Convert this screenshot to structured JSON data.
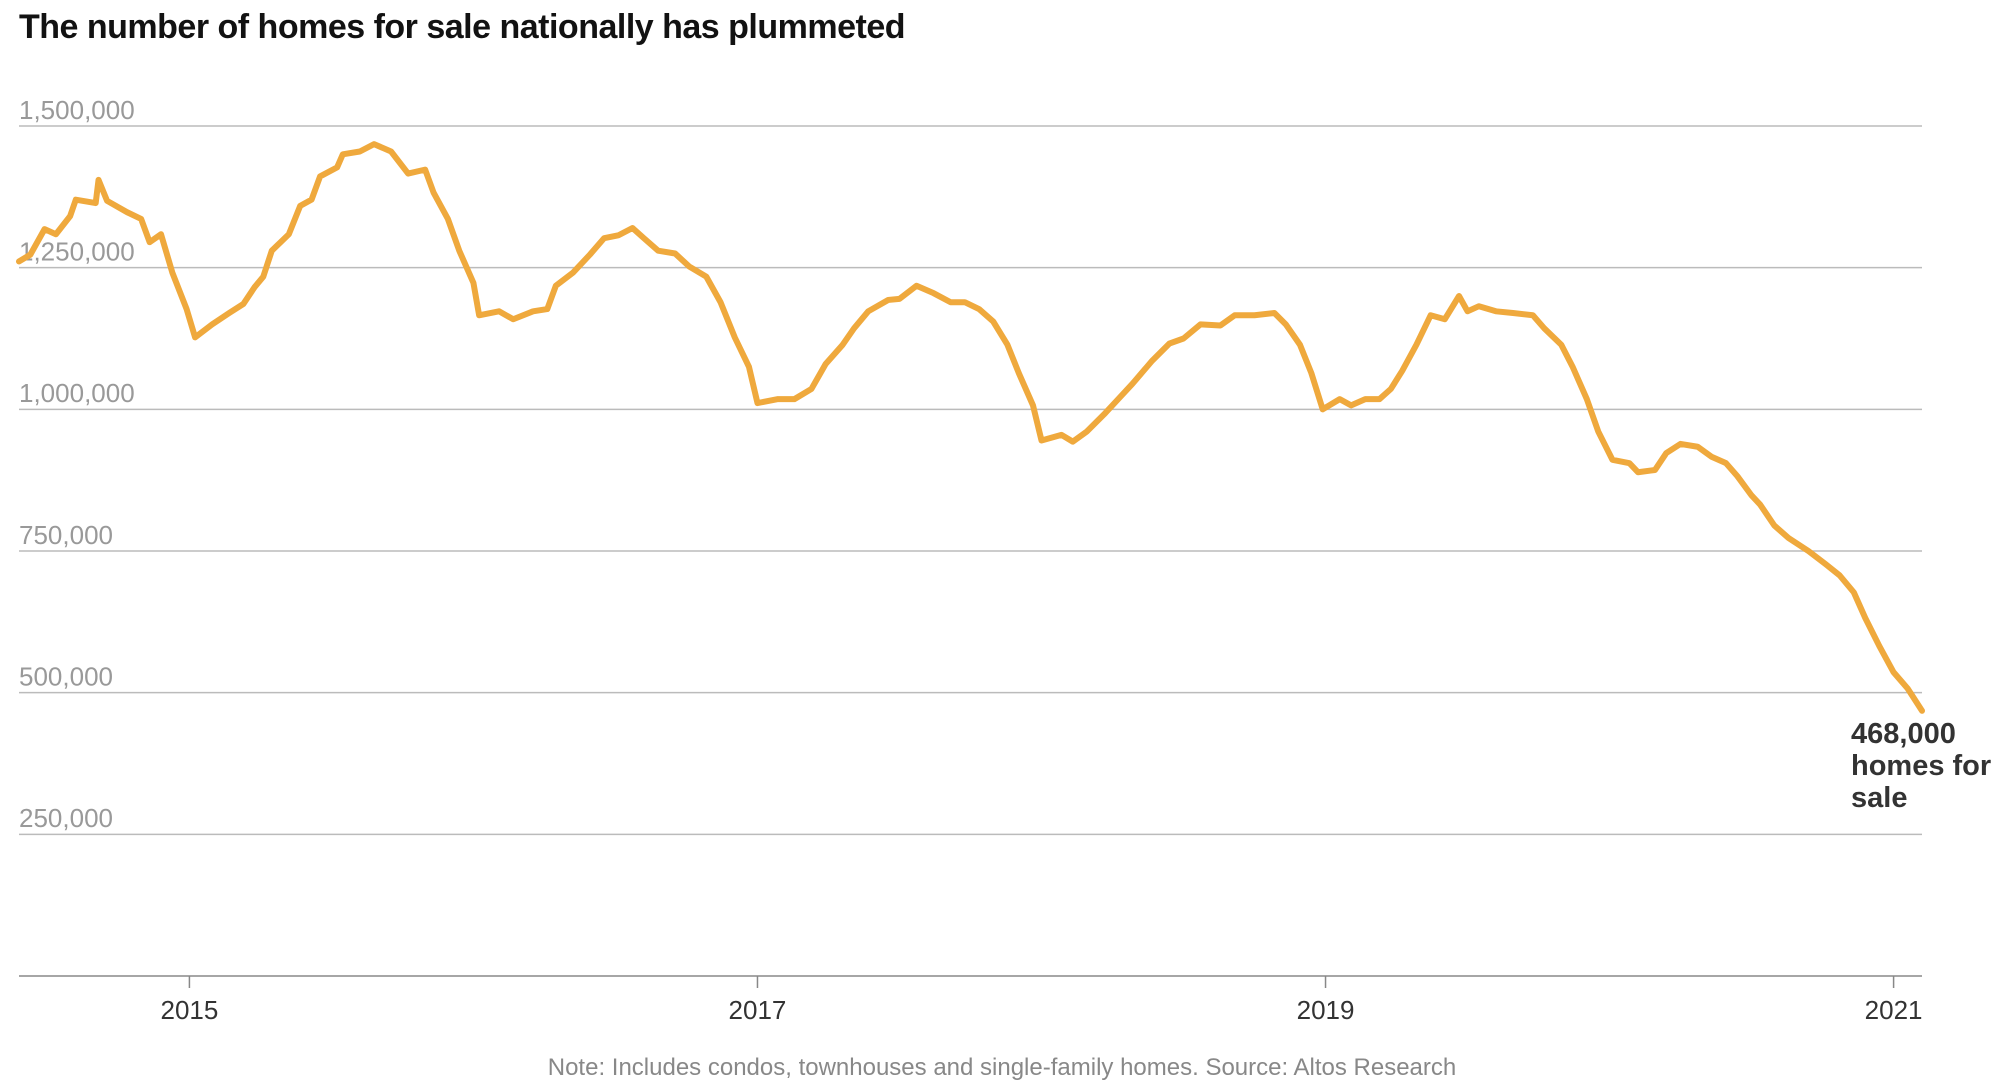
{
  "chart_data": {
    "type": "line",
    "title": "The number of homes for sale nationally has plummeted",
    "note": "Note: Includes condos, townhouses and single-family homes. Source: Altos Research",
    "annotation": "468,000 homes for sale",
    "color": "#efa93d",
    "x": [
      2014.4,
      2014.44,
      2014.49,
      2014.53,
      2014.58,
      2014.6,
      2014.67,
      2014.68,
      2014.71,
      2014.78,
      2014.83,
      2014.86,
      2014.9,
      2014.94,
      2014.99,
      2015.02,
      2015.08,
      2015.14,
      2015.19,
      2015.23,
      2015.26,
      2015.29,
      2015.35,
      2015.39,
      2015.43,
      2015.46,
      2015.52,
      2015.54,
      2015.6,
      2015.65,
      2015.71,
      2015.77,
      2015.83,
      2015.86,
      2015.91,
      2015.95,
      2016.0,
      2016.02,
      2016.09,
      2016.14,
      2016.21,
      2016.26,
      2016.29,
      2016.35,
      2016.41,
      2016.46,
      2016.51,
      2016.56,
      2016.6,
      2016.65,
      2016.71,
      2016.76,
      2016.82,
      2016.87,
      2016.92,
      2016.97,
      2017.0,
      2017.07,
      2017.13,
      2017.19,
      2017.24,
      2017.3,
      2017.34,
      2017.39,
      2017.46,
      2017.5,
      2017.56,
      2017.62,
      2017.68,
      2017.73,
      2017.78,
      2017.83,
      2017.88,
      2017.92,
      2017.97,
      2018.0,
      2018.07,
      2018.11,
      2018.16,
      2018.22,
      2018.27,
      2018.32,
      2018.39,
      2018.45,
      2018.5,
      2018.56,
      2018.63,
      2018.68,
      2018.75,
      2018.82,
      2018.86,
      2018.91,
      2018.95,
      2018.99,
      2019.05,
      2019.09,
      2019.14,
      2019.19,
      2019.23,
      2019.27,
      2019.32,
      2019.37,
      2019.42,
      2019.47,
      2019.5,
      2019.54,
      2019.6,
      2019.66,
      2019.73,
      2019.77,
      2019.83,
      2019.87,
      2019.92,
      2019.96,
      2020.01,
      2020.07,
      2020.1,
      2020.16,
      2020.2,
      2020.25,
      2020.31,
      2020.36,
      2020.41,
      2020.45,
      2020.5,
      2020.53,
      2020.58,
      2020.63,
      2020.7,
      2020.76,
      2020.81,
      2020.86,
      2020.9,
      2020.95,
      2021.0,
      2021.05,
      2021.1
    ],
    "values": [
      1261000,
      1273000,
      1318000,
      1309000,
      1341000,
      1370000,
      1364000,
      1405000,
      1368000,
      1348000,
      1336000,
      1295000,
      1309000,
      1241000,
      1177000,
      1127000,
      1150000,
      1170000,
      1186000,
      1216000,
      1234000,
      1280000,
      1309000,
      1359000,
      1370000,
      1411000,
      1427000,
      1450000,
      1455000,
      1468000,
      1455000,
      1416000,
      1423000,
      1382000,
      1336000,
      1280000,
      1223000,
      1166000,
      1173000,
      1159000,
      1173000,
      1177000,
      1218000,
      1241000,
      1273000,
      1302000,
      1307000,
      1320000,
      1302000,
      1280000,
      1275000,
      1252000,
      1234000,
      1189000,
      1127000,
      1075000,
      1011000,
      1018000,
      1018000,
      1036000,
      1080000,
      1114000,
      1143000,
      1173000,
      1193000,
      1195000,
      1218000,
      1205000,
      1189000,
      1189000,
      1177000,
      1155000,
      1114000,
      1064000,
      1007000,
      945000,
      955000,
      943000,
      961000,
      991000,
      1018000,
      1045000,
      1086000,
      1116000,
      1125000,
      1150000,
      1148000,
      1166000,
      1166000,
      1170000,
      1150000,
      1114000,
      1064000,
      1000000,
      1018000,
      1007000,
      1018000,
      1018000,
      1036000,
      1068000,
      1114000,
      1166000,
      1159000,
      1200000,
      1173000,
      1182000,
      1173000,
      1170000,
      1166000,
      1143000,
      1114000,
      1075000,
      1018000,
      961000,
      911000,
      905000,
      889000,
      893000,
      923000,
      939000,
      934000,
      916000,
      905000,
      882000,
      848000,
      832000,
      795000,
      773000,
      750000,
      727000,
      707000,
      677000,
      632000,
      582000,
      536000,
      507000,
      468000
    ],
    "xlim": [
      2014.4,
      2021.1
    ],
    "xticks": [
      2015,
      2017,
      2019,
      2021
    ],
    "ylim": [
      0,
      1500000
    ],
    "yticks": [
      {
        "value": 250000,
        "label": "250,000"
      },
      {
        "value": 500000,
        "label": "500,000"
      },
      {
        "value": 750000,
        "label": "750,000"
      },
      {
        "value": 1000000,
        "label": "1,000,000"
      },
      {
        "value": 1250000,
        "label": "1,250,000"
      },
      {
        "value": 1500000,
        "label": "1,500,000"
      }
    ],
    "grid": true
  }
}
